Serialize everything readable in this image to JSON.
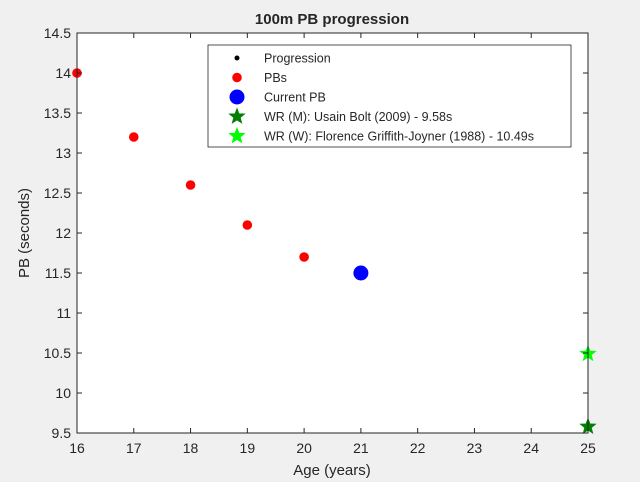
{
  "chart_data": {
    "type": "scatter",
    "title": "100m PB progression",
    "xlabel": "Age (years)",
    "ylabel": "PB (seconds)",
    "xlim": [
      16,
      25
    ],
    "ylim": [
      9.5,
      14.5
    ],
    "xticks": [
      "16",
      "17",
      "18",
      "19",
      "20",
      "21",
      "22",
      "23",
      "24",
      "25"
    ],
    "yticks": [
      "9.5",
      "10",
      "10.5",
      "11",
      "11.5",
      "12",
      "12.5",
      "13",
      "13.5",
      "14",
      "14.5"
    ],
    "grid": false,
    "legend_position": "top-right",
    "series": [
      {
        "name": "Progression",
        "marker": "dot",
        "color": "#000000",
        "x": [],
        "y": []
      },
      {
        "name": "PBs",
        "marker": "circle",
        "color": "#ff0000",
        "x": [
          16,
          17,
          18,
          19,
          20
        ],
        "y": [
          14.0,
          13.2,
          12.6,
          12.1,
          11.7
        ]
      },
      {
        "name": "Current PB",
        "marker": "circle-large",
        "color": "#0000ff",
        "x": [
          21
        ],
        "y": [
          11.5
        ]
      },
      {
        "name": "WR (M): Usain Bolt (2009) - 9.58s",
        "marker": "star",
        "color": "#008000",
        "x": [
          25
        ],
        "y": [
          9.58
        ]
      },
      {
        "name": "WR (W): Florence Griffith-Joyner (1988) - 10.49s",
        "marker": "star",
        "color": "#00ff00",
        "x": [
          25
        ],
        "y": [
          10.49
        ]
      }
    ]
  }
}
